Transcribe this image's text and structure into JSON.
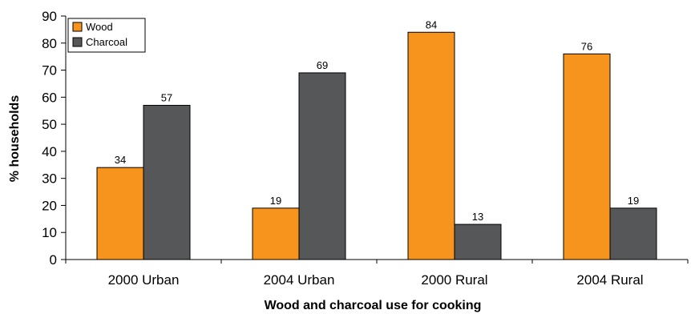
{
  "chart_data": {
    "type": "bar",
    "categories": [
      "2000 Urban",
      "2004 Urban",
      "2000 Rural",
      "2004 Rural"
    ],
    "series": [
      {
        "name": "Wood",
        "values": [
          34,
          19,
          84,
          76
        ],
        "color": "#f7941d"
      },
      {
        "name": "Charcoal",
        "values": [
          57,
          69,
          13,
          19
        ],
        "color": "#555759"
      }
    ],
    "title": "",
    "xlabel": "Wood and charcoal use for cooking",
    "ylabel": "% households",
    "ylim": [
      0,
      90
    ],
    "yticks": [
      "0",
      "10",
      "20",
      "30",
      "40",
      "50",
      "60",
      "70",
      "80",
      "90"
    ],
    "data_labels": true,
    "grid": false,
    "legend_position": "top-left"
  }
}
